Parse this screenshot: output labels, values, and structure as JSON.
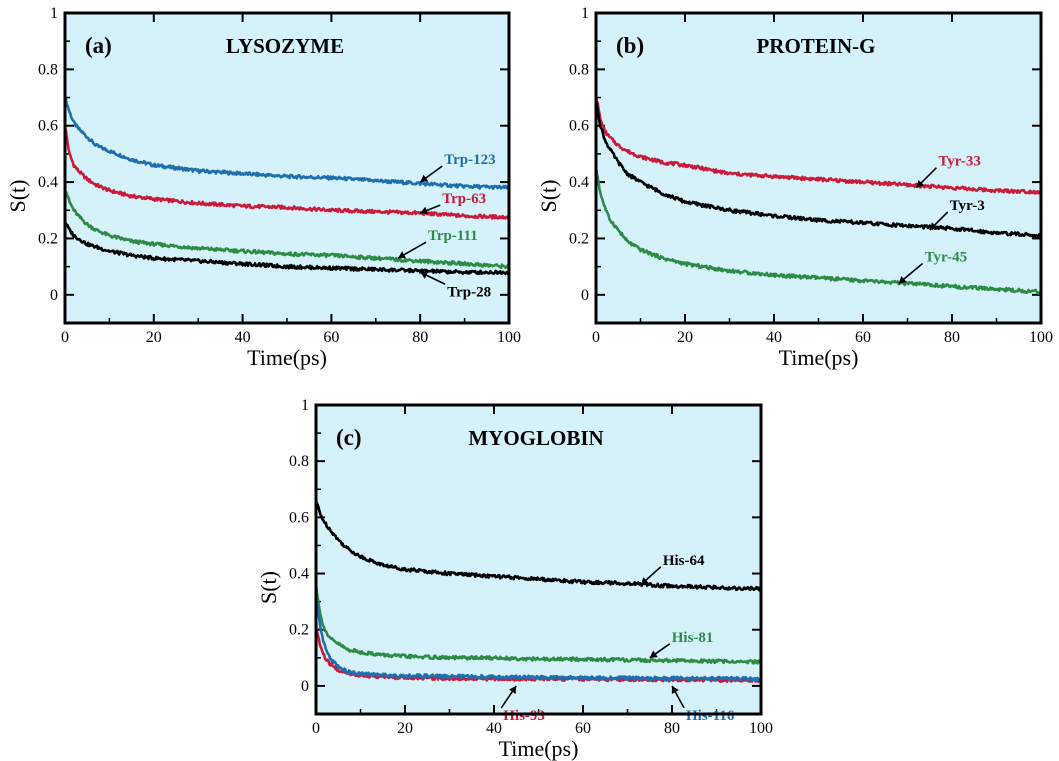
{
  "chart_data": [
    {
      "type": "line",
      "panel": "(a)",
      "title": "LYSOZYME",
      "xlabel": "Time(ps)",
      "ylabel": "S(t)",
      "xlim": [
        0,
        100
      ],
      "ylim": [
        -0.1,
        1.0
      ],
      "xticks": [
        "0",
        "20",
        "40",
        "60",
        "80",
        "100"
      ],
      "yticks": [
        "0",
        "0.2",
        "0.4",
        "0.6",
        "0.8",
        "1"
      ],
      "grid": false,
      "background": "#d5f2fa",
      "series": [
        {
          "name": "Trp-123",
          "color": "#1f6fae",
          "label_at": {
            "x": 80,
            "y": 0.4
          },
          "points": [
            [
              0,
              0.7
            ],
            [
              1,
              0.65
            ],
            [
              2,
              0.61
            ],
            [
              3,
              0.59
            ],
            [
              5,
              0.56
            ],
            [
              7,
              0.53
            ],
            [
              10,
              0.51
            ],
            [
              15,
              0.48
            ],
            [
              20,
              0.46
            ],
            [
              30,
              0.44
            ],
            [
              40,
              0.43
            ],
            [
              50,
              0.42
            ],
            [
              60,
              0.415
            ],
            [
              70,
              0.405
            ],
            [
              80,
              0.395
            ],
            [
              90,
              0.385
            ],
            [
              100,
              0.38
            ]
          ]
        },
        {
          "name": "Trp-63",
          "color": "#cc1a3a",
          "label_at": {
            "x": 80,
            "y": 0.29
          },
          "points": [
            [
              0,
              0.6
            ],
            [
              1,
              0.5
            ],
            [
              2,
              0.46
            ],
            [
              3,
              0.44
            ],
            [
              5,
              0.41
            ],
            [
              7,
              0.39
            ],
            [
              10,
              0.37
            ],
            [
              15,
              0.35
            ],
            [
              20,
              0.34
            ],
            [
              30,
              0.325
            ],
            [
              40,
              0.315
            ],
            [
              50,
              0.31
            ],
            [
              60,
              0.3
            ],
            [
              70,
              0.295
            ],
            [
              80,
              0.29
            ],
            [
              90,
              0.28
            ],
            [
              100,
              0.275
            ]
          ]
        },
        {
          "name": "Trp-111",
          "color": "#2e8b46",
          "label_at": {
            "x": 75,
            "y": 0.13
          },
          "points": [
            [
              0,
              0.38
            ],
            [
              1,
              0.33
            ],
            [
              2,
              0.3
            ],
            [
              3,
              0.28
            ],
            [
              5,
              0.25
            ],
            [
              7,
              0.23
            ],
            [
              10,
              0.21
            ],
            [
              15,
              0.19
            ],
            [
              20,
              0.18
            ],
            [
              30,
              0.165
            ],
            [
              40,
              0.155
            ],
            [
              50,
              0.145
            ],
            [
              60,
              0.14
            ],
            [
              70,
              0.13
            ],
            [
              80,
              0.12
            ],
            [
              90,
              0.11
            ],
            [
              100,
              0.1
            ]
          ]
        },
        {
          "name": "Trp-28",
          "color": "#000000",
          "label_at": {
            "x": 80,
            "y": 0.08
          },
          "points": [
            [
              0,
              0.26
            ],
            [
              1,
              0.23
            ],
            [
              2,
              0.21
            ],
            [
              3,
              0.2
            ],
            [
              5,
              0.18
            ],
            [
              7,
              0.17
            ],
            [
              10,
              0.155
            ],
            [
              15,
              0.14
            ],
            [
              20,
              0.13
            ],
            [
              30,
              0.12
            ],
            [
              40,
              0.11
            ],
            [
              50,
              0.1
            ],
            [
              60,
              0.095
            ],
            [
              70,
              0.09
            ],
            [
              80,
              0.085
            ],
            [
              90,
              0.08
            ],
            [
              100,
              0.08
            ]
          ]
        }
      ]
    },
    {
      "type": "line",
      "panel": "(b)",
      "title": "PROTEIN-G",
      "xlabel": "Time(ps)",
      "ylabel": "S(t)",
      "xlim": [
        0,
        100
      ],
      "ylim": [
        -0.1,
        1.0
      ],
      "xticks": [
        "0",
        "20",
        "40",
        "60",
        "80",
        "100"
      ],
      "yticks": [
        "0",
        "0.2",
        "0.4",
        "0.6",
        "0.8",
        "1"
      ],
      "grid": false,
      "background": "#d5f2fa",
      "series": [
        {
          "name": "Tyr-33",
          "color": "#cc1a3a",
          "label_at": {
            "x": 72,
            "y": 0.38
          },
          "points": [
            [
              0,
              0.71
            ],
            [
              1,
              0.62
            ],
            [
              2,
              0.58
            ],
            [
              3,
              0.56
            ],
            [
              5,
              0.53
            ],
            [
              7,
              0.51
            ],
            [
              10,
              0.49
            ],
            [
              15,
              0.47
            ],
            [
              20,
              0.46
            ],
            [
              30,
              0.43
            ],
            [
              40,
              0.42
            ],
            [
              50,
              0.41
            ],
            [
              60,
              0.4
            ],
            [
              70,
              0.39
            ],
            [
              80,
              0.38
            ],
            [
              90,
              0.37
            ],
            [
              100,
              0.365
            ]
          ]
        },
        {
          "name": "Tyr-3",
          "color": "#000000",
          "label_at": {
            "x": 75,
            "y": 0.23
          },
          "points": [
            [
              0,
              0.69
            ],
            [
              1,
              0.6
            ],
            [
              2,
              0.55
            ],
            [
              3,
              0.52
            ],
            [
              5,
              0.47
            ],
            [
              7,
              0.43
            ],
            [
              10,
              0.4
            ],
            [
              15,
              0.36
            ],
            [
              20,
              0.33
            ],
            [
              30,
              0.3
            ],
            [
              40,
              0.28
            ],
            [
              50,
              0.265
            ],
            [
              60,
              0.255
            ],
            [
              70,
              0.245
            ],
            [
              80,
              0.235
            ],
            [
              90,
              0.22
            ],
            [
              100,
              0.21
            ]
          ]
        },
        {
          "name": "Tyr-45",
          "color": "#2e8b46",
          "label_at": {
            "x": 68,
            "y": 0.04
          },
          "points": [
            [
              0,
              0.45
            ],
            [
              1,
              0.36
            ],
            [
              2,
              0.31
            ],
            [
              3,
              0.27
            ],
            [
              5,
              0.23
            ],
            [
              7,
              0.19
            ],
            [
              10,
              0.16
            ],
            [
              15,
              0.13
            ],
            [
              20,
              0.11
            ],
            [
              30,
              0.085
            ],
            [
              40,
              0.07
            ],
            [
              50,
              0.06
            ],
            [
              60,
              0.05
            ],
            [
              70,
              0.04
            ],
            [
              80,
              0.03
            ],
            [
              90,
              0.02
            ],
            [
              100,
              0.01
            ]
          ]
        }
      ]
    },
    {
      "type": "line",
      "panel": "(c)",
      "title": "MYOGLOBIN",
      "xlabel": "Time(ps)",
      "ylabel": "S(t)",
      "xlim": [
        0,
        100
      ],
      "ylim": [
        -0.1,
        1.0
      ],
      "xticks": [
        "0",
        "20",
        "40",
        "60",
        "80",
        "100"
      ],
      "yticks": [
        "0",
        "0.2",
        "0.4",
        "0.6",
        "0.8",
        "1"
      ],
      "grid": false,
      "background": "#d5f2fa",
      "series": [
        {
          "name": "His-64",
          "color": "#000000",
          "label_at": {
            "x": 73,
            "y": 0.36
          },
          "points": [
            [
              0,
              0.66
            ],
            [
              1,
              0.61
            ],
            [
              2,
              0.58
            ],
            [
              3,
              0.56
            ],
            [
              5,
              0.52
            ],
            [
              7,
              0.49
            ],
            [
              10,
              0.46
            ],
            [
              15,
              0.43
            ],
            [
              20,
              0.415
            ],
            [
              30,
              0.4
            ],
            [
              40,
              0.39
            ],
            [
              50,
              0.38
            ],
            [
              60,
              0.37
            ],
            [
              70,
              0.365
            ],
            [
              80,
              0.355
            ],
            [
              90,
              0.35
            ],
            [
              100,
              0.345
            ]
          ]
        },
        {
          "name": "His-81",
          "color": "#2e8b46",
          "label_at": {
            "x": 75,
            "y": 0.1
          },
          "points": [
            [
              0,
              0.36
            ],
            [
              1,
              0.25
            ],
            [
              2,
              0.2
            ],
            [
              3,
              0.17
            ],
            [
              5,
              0.15
            ],
            [
              7,
              0.13
            ],
            [
              10,
              0.12
            ],
            [
              15,
              0.11
            ],
            [
              20,
              0.105
            ],
            [
              30,
              0.1
            ],
            [
              40,
              0.1
            ],
            [
              50,
              0.095
            ],
            [
              60,
              0.095
            ],
            [
              70,
              0.092
            ],
            [
              80,
              0.09
            ],
            [
              90,
              0.088
            ],
            [
              100,
              0.085
            ]
          ]
        },
        {
          "name": "His-93",
          "color": "#cc1a3a",
          "label_at": {
            "x": 45,
            "y": 0.0
          },
          "points": [
            [
              0,
              0.21
            ],
            [
              1,
              0.14
            ],
            [
              2,
              0.1
            ],
            [
              3,
              0.08
            ],
            [
              5,
              0.055
            ],
            [
              7,
              0.045
            ],
            [
              10,
              0.038
            ],
            [
              15,
              0.032
            ],
            [
              20,
              0.03
            ],
            [
              30,
              0.027
            ],
            [
              40,
              0.025
            ],
            [
              50,
              0.025
            ],
            [
              60,
              0.024
            ],
            [
              70,
              0.023
            ],
            [
              80,
              0.022
            ],
            [
              90,
              0.021
            ],
            [
              100,
              0.02
            ]
          ]
        },
        {
          "name": "His-116",
          "color": "#1f6fae",
          "label_at": {
            "x": 80,
            "y": 0.0
          },
          "points": [
            [
              0,
              0.32
            ],
            [
              1,
              0.2
            ],
            [
              2,
              0.14
            ],
            [
              3,
              0.1
            ],
            [
              5,
              0.07
            ],
            [
              7,
              0.05
            ],
            [
              10,
              0.043
            ],
            [
              15,
              0.038
            ],
            [
              20,
              0.036
            ],
            [
              30,
              0.034
            ],
            [
              40,
              0.032
            ],
            [
              50,
              0.03
            ],
            [
              60,
              0.029
            ],
            [
              70,
              0.028
            ],
            [
              80,
              0.027
            ],
            [
              90,
              0.026
            ],
            [
              100,
              0.025
            ]
          ]
        }
      ]
    }
  ]
}
